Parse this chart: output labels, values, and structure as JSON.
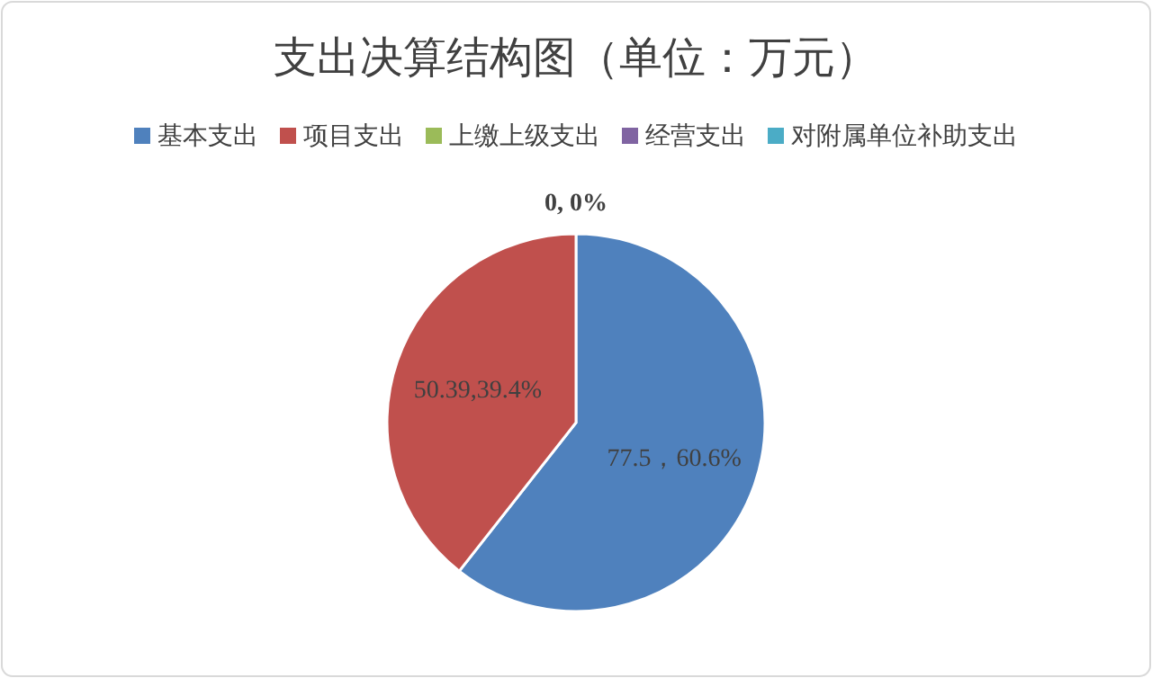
{
  "chart_data": {
    "type": "pie",
    "title": "支出决算结构图（单位：万元）",
    "categories": [
      "基本支出",
      "项目支出",
      "上缴上级支出",
      "经营支出",
      "对附属单位补助支出"
    ],
    "values": [
      77.5,
      50.39,
      0,
      0,
      0
    ],
    "colors": [
      "#4f81bd",
      "#c0504d",
      "#9bbb59",
      "#8064a2",
      "#4bacc6"
    ],
    "value_labels": [
      "77.5，60.6%",
      "50.39,39.4%",
      "0, 0%",
      null,
      null
    ],
    "legend": "top"
  }
}
